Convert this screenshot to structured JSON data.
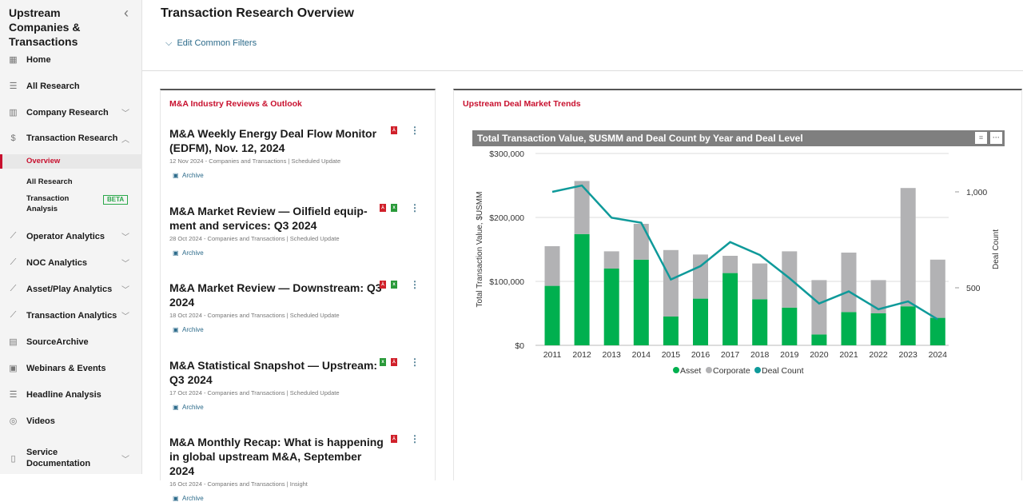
{
  "sidebar": {
    "title": "Upstream Companies & Transactions",
    "items": [
      {
        "label": "Home",
        "icon": "grid-icon"
      },
      {
        "label": "All Research",
        "icon": "list-icon"
      },
      {
        "label": "Company Research",
        "icon": "building-icon",
        "chevron": "down"
      },
      {
        "label": "Transaction Research",
        "icon": "dollar-icon",
        "chevron": "up"
      },
      {
        "label": "Operator Analytics",
        "icon": "chart-icon",
        "chevron": "down"
      },
      {
        "label": "NOC Analytics",
        "icon": "chart-icon",
        "chevron": "down"
      },
      {
        "label": "Asset/Play Analytics",
        "icon": "chart-icon",
        "chevron": "down"
      },
      {
        "label": "Transaction Analytics",
        "icon": "chart-icon",
        "chevron": "down"
      },
      {
        "label": "SourceArchive",
        "icon": "archive-doc-icon"
      },
      {
        "label": "Webinars & Events",
        "icon": "calendar-icon"
      },
      {
        "label": "Headline Analysis",
        "icon": "list-icon"
      },
      {
        "label": "Videos",
        "icon": "play-icon"
      },
      {
        "label": "Service Documentation",
        "icon": "document-icon",
        "chevron": "down"
      }
    ],
    "subitems": [
      {
        "label": "Overview",
        "active": true
      },
      {
        "label": "All Research"
      },
      {
        "label": "Transaction Analysis",
        "badge": "BETA"
      }
    ]
  },
  "header": {
    "title": "Transaction Research Overview",
    "filters": "Edit Common Filters"
  },
  "left_panel": {
    "title": "M&A Industry Reviews & Outlook",
    "archive_label": "Archive",
    "articles": [
      {
        "title": "M&A Weekly Energy Deal Flow Monitor (EDFM), Nov. 12, 2024",
        "meta": "12 Nov 2024 - Companies and Transactions | Scheduled Update",
        "files": [
          "pdf"
        ]
      },
      {
        "title": "M&A Market Review — Oilfield equip-ment and services: Q3 2024",
        "meta": "28 Oct 2024 - Companies and Transactions | Scheduled Update",
        "files": [
          "pdf",
          "xls"
        ]
      },
      {
        "title": "M&A Market Review — Downstream: Q3 2024",
        "meta": "18 Oct 2024 - Companies and Transactions | Scheduled Update",
        "files": [
          "pdf",
          "xls"
        ]
      },
      {
        "title": "M&A Statistical Snapshot — Upstream: Q3 2024",
        "meta": "17 Oct 2024 - Companies and Transactions | Scheduled Update",
        "files": [
          "xls",
          "pdf"
        ]
      },
      {
        "title": "M&A Monthly Recap: What is happening in global upstream M&A, September 2024",
        "meta": "16 Oct 2024 - Companies and Transactions | Insight",
        "files": [
          "pdf"
        ]
      }
    ]
  },
  "right_panel": {
    "title": "Upstream Deal Market Trends"
  },
  "chart_data": {
    "type": "bar+line",
    "title": "Total Transaction Value, $USMM and Deal Count by Year and Deal Level",
    "ylabel": "Total Transaction Value, $USMM",
    "y2label": "Deal Count",
    "ylim": [
      0,
      300000
    ],
    "yticks": [
      "$0",
      "$100,000",
      "$200,000",
      "$300,000"
    ],
    "y2lim": [
      200,
      1200
    ],
    "y2ticks": [
      "500",
      "1,000"
    ],
    "categories": [
      "2011",
      "2012",
      "2013",
      "2014",
      "2015",
      "2016",
      "2017",
      "2018",
      "2019",
      "2020",
      "2021",
      "2022",
      "2023",
      "2024"
    ],
    "series": [
      {
        "name": "Asset",
        "type": "bar",
        "stack": true,
        "color": "#00b04f",
        "values": [
          93000,
          174000,
          120000,
          134000,
          45000,
          73000,
          113000,
          72000,
          59000,
          17000,
          52000,
          50000,
          61000,
          43000
        ]
      },
      {
        "name": "Corporate",
        "type": "bar",
        "stack": true,
        "color": "#b2b2b4",
        "values": [
          62000,
          83000,
          27000,
          56000,
          104000,
          69000,
          27000,
          56000,
          88000,
          85000,
          93000,
          52000,
          185000,
          91000
        ]
      },
      {
        "name": "Deal Count",
        "type": "line",
        "axis": "right",
        "color": "#0f9a9a",
        "values": [
          1000,
          1033,
          865,
          839,
          543,
          613,
          738,
          671,
          550,
          418,
          481,
          388,
          429,
          335
        ]
      }
    ],
    "legend": "bottom",
    "grid": true
  }
}
